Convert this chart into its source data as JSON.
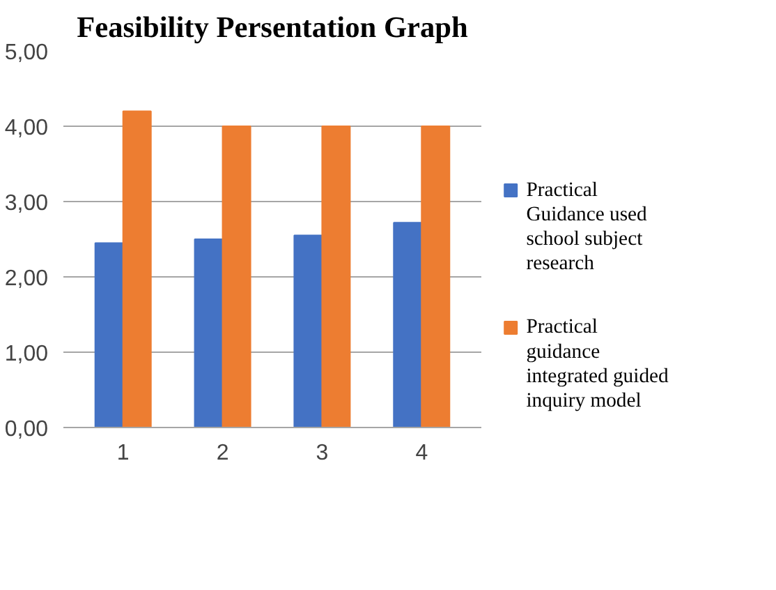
{
  "chart_data": {
    "type": "bar",
    "title": "Feasibility Persentation Graph",
    "categories": [
      "1",
      "2",
      "3",
      "4"
    ],
    "series": [
      {
        "name": "Practical Guidance used school subject research",
        "color": "#4472c4",
        "values": [
          2.45,
          2.5,
          2.55,
          2.72
        ]
      },
      {
        "name": "Practical guidance integrated guided inquiry model",
        "color": "#ed7d31",
        "values": [
          4.2,
          4.0,
          4.0,
          4.0
        ]
      }
    ],
    "ylim": [
      0,
      5
    ],
    "yticks": [
      {
        "value": 0,
        "label": "0,00"
      },
      {
        "value": 1,
        "label": "1,00"
      },
      {
        "value": 2,
        "label": "2,00"
      },
      {
        "value": 3,
        "label": "3,00"
      },
      {
        "value": 4,
        "label": "4,00"
      },
      {
        "value": 5,
        "label": "5,00"
      }
    ],
    "grid": "y",
    "legend": "right"
  }
}
